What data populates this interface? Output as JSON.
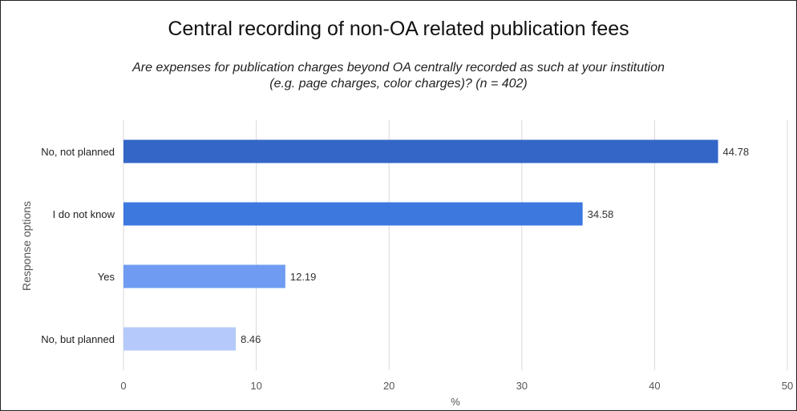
{
  "chart_data": {
    "type": "bar",
    "orientation": "horizontal",
    "title": "Central recording of non-OA related publication fees",
    "subtitle_line1": "Are expenses for publication charges beyond OA centrally recorded as such at your institution",
    "subtitle_line2": "(e.g. page charges, color charges)? (n = 402)",
    "xlabel": "%",
    "ylabel": "Response options",
    "categories": [
      "No, not planned",
      "I do not know",
      "Yes",
      "No, but planned"
    ],
    "values": [
      44.78,
      34.58,
      12.19,
      8.46
    ],
    "value_labels": [
      "44.78",
      "34.58",
      "12.19",
      "8.46"
    ],
    "bar_colors": [
      "#3366c6",
      "#3d78df",
      "#6f9bf2",
      "#b5c9fa"
    ],
    "xlim": [
      0,
      50
    ],
    "xticks": [
      "0",
      "10",
      "20",
      "30",
      "40",
      "50"
    ],
    "grid": true,
    "legend": "none"
  }
}
